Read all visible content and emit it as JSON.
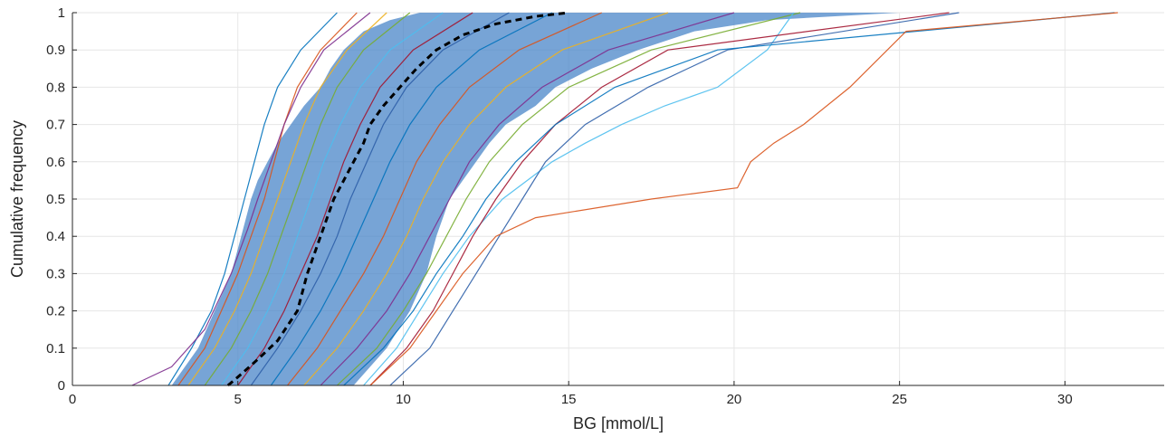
{
  "chart_data": {
    "type": "line",
    "title": "",
    "xlabel": "BG [mmol/L]",
    "ylabel": "Cumulative frequency",
    "xlim": [
      0,
      33
    ],
    "ylim": [
      0,
      1
    ],
    "xticks": [
      0,
      5,
      10,
      15,
      20,
      25,
      30
    ],
    "yticks": [
      0,
      0.1,
      0.2,
      0.3,
      0.4,
      0.5,
      0.6,
      0.7,
      0.8,
      0.9,
      1
    ],
    "grid": true,
    "legend": "none",
    "colors": {
      "band": "#4a86c8",
      "median": "#000000",
      "palette": [
        "#0072bd",
        "#d95319",
        "#edb120",
        "#7e2f8e",
        "#77ac30",
        "#4dbeee",
        "#a2142f",
        "#2e5fa8"
      ]
    },
    "band": {
      "x_lower": [
        3.0,
        3.8,
        4.3,
        4.8,
        5.1,
        5.4,
        5.6,
        5.9,
        6.2,
        6.6,
        7.0,
        7.5,
        7.8,
        8.2,
        8.8,
        9.6,
        10.5
      ],
      "x_upper": [
        8.5,
        9.5,
        10.2,
        10.7,
        11.0,
        11.4,
        11.8,
        12.2,
        12.6,
        13.1,
        14.0,
        14.6,
        15.7,
        17.1,
        18.8,
        21.0,
        25.0
      ],
      "y": [
        0,
        0.1,
        0.2,
        0.3,
        0.4,
        0.5,
        0.55,
        0.6,
        0.65,
        0.7,
        0.75,
        0.8,
        0.85,
        0.9,
        0.95,
        0.98,
        1.0
      ]
    },
    "median": {
      "x": [
        4.7,
        5.1,
        5.6,
        6.2,
        6.8,
        7.1,
        7.3,
        7.5,
        7.7,
        7.9,
        8.2,
        8.5,
        8.8,
        9.0,
        9.4,
        9.9,
        10.4,
        11.0,
        11.8,
        12.8,
        14.0,
        15.0
      ],
      "y": [
        0,
        0.03,
        0.07,
        0.12,
        0.2,
        0.3,
        0.35,
        0.4,
        0.45,
        0.5,
        0.55,
        0.6,
        0.65,
        0.7,
        0.75,
        0.8,
        0.85,
        0.9,
        0.94,
        0.97,
        0.99,
        1.0
      ]
    },
    "series": [
      {
        "x": [
          2.9,
          3.6,
          4.2,
          4.6,
          4.9,
          5.2,
          5.5,
          5.8,
          6.2,
          6.9,
          8.0
        ],
        "y": [
          0,
          0.1,
          0.2,
          0.3,
          0.4,
          0.5,
          0.6,
          0.7,
          0.8,
          0.9,
          1.0
        ]
      },
      {
        "x": [
          3.2,
          4.0,
          4.5,
          5.0,
          5.4,
          5.8,
          6.1,
          6.4,
          6.8,
          7.5,
          8.6
        ],
        "y": [
          0,
          0.1,
          0.2,
          0.3,
          0.4,
          0.5,
          0.6,
          0.7,
          0.8,
          0.9,
          1.0
        ]
      },
      {
        "x": [
          3.5,
          4.3,
          4.9,
          5.4,
          5.8,
          6.2,
          6.6,
          7.0,
          7.5,
          8.3,
          9.5
        ],
        "y": [
          0,
          0.1,
          0.2,
          0.3,
          0.4,
          0.5,
          0.6,
          0.7,
          0.8,
          0.9,
          1.0
        ]
      },
      {
        "x": [
          1.8,
          3.0,
          4.0,
          4.8,
          5.3,
          5.6,
          6.0,
          6.4,
          6.9,
          7.6,
          9.0
        ],
        "y": [
          0,
          0.05,
          0.15,
          0.3,
          0.42,
          0.5,
          0.6,
          0.7,
          0.8,
          0.9,
          1.0
        ]
      },
      {
        "x": [
          4.0,
          4.8,
          5.4,
          5.9,
          6.3,
          6.7,
          7.1,
          7.5,
          8.0,
          8.8,
          10.2
        ],
        "y": [
          0,
          0.1,
          0.2,
          0.3,
          0.4,
          0.5,
          0.6,
          0.7,
          0.8,
          0.9,
          1.0
        ]
      },
      {
        "x": [
          4.5,
          5.3,
          5.9,
          6.4,
          6.8,
          7.2,
          7.6,
          8.1,
          8.7,
          9.6,
          11.2
        ],
        "y": [
          0,
          0.1,
          0.2,
          0.3,
          0.4,
          0.5,
          0.6,
          0.7,
          0.8,
          0.9,
          1.0
        ]
      },
      {
        "x": [
          5.0,
          5.8,
          6.4,
          6.9,
          7.4,
          7.8,
          8.2,
          8.7,
          9.3,
          10.3,
          12.1
        ],
        "y": [
          0,
          0.1,
          0.2,
          0.3,
          0.4,
          0.5,
          0.6,
          0.7,
          0.8,
          0.9,
          1.0
        ]
      },
      {
        "x": [
          5.4,
          6.2,
          6.9,
          7.5,
          8.0,
          8.4,
          8.9,
          9.4,
          10.1,
          11.2,
          13.2
        ],
        "y": [
          0,
          0.1,
          0.2,
          0.3,
          0.4,
          0.5,
          0.6,
          0.7,
          0.8,
          0.9,
          1.0
        ]
      },
      {
        "x": [
          6.0,
          6.8,
          7.5,
          8.1,
          8.6,
          9.1,
          9.6,
          10.2,
          11.0,
          12.3,
          14.5
        ],
        "y": [
          0,
          0.1,
          0.2,
          0.3,
          0.4,
          0.5,
          0.6,
          0.7,
          0.8,
          0.9,
          1.0
        ]
      },
      {
        "x": [
          6.5,
          7.4,
          8.1,
          8.8,
          9.4,
          9.9,
          10.4,
          11.1,
          12.0,
          13.5,
          16.0
        ],
        "y": [
          0,
          0.1,
          0.2,
          0.3,
          0.4,
          0.5,
          0.6,
          0.7,
          0.8,
          0.9,
          1.0
        ]
      },
      {
        "x": [
          7.0,
          8.0,
          8.8,
          9.5,
          10.1,
          10.6,
          11.2,
          12.0,
          13.1,
          14.8,
          18.0
        ],
        "y": [
          0,
          0.1,
          0.2,
          0.3,
          0.4,
          0.5,
          0.6,
          0.7,
          0.8,
          0.9,
          1.0
        ]
      },
      {
        "x": [
          7.5,
          8.6,
          9.5,
          10.2,
          10.8,
          11.4,
          12.0,
          12.9,
          14.2,
          16.2,
          20.0
        ],
        "y": [
          0,
          0.1,
          0.2,
          0.3,
          0.4,
          0.5,
          0.6,
          0.7,
          0.8,
          0.9,
          1.0
        ]
      },
      {
        "x": [
          8.0,
          9.2,
          10.0,
          10.7,
          11.3,
          11.9,
          12.6,
          13.6,
          15.0,
          17.5,
          22.0
        ],
        "y": [
          0,
          0.1,
          0.2,
          0.3,
          0.4,
          0.5,
          0.6,
          0.7,
          0.8,
          0.9,
          1.0
        ]
      },
      {
        "x": [
          8.8,
          9.8,
          10.5,
          11.2,
          12.0,
          13.0,
          14.5,
          15.5,
          16.6,
          17.9,
          19.5,
          21.0,
          21.8
        ],
        "y": [
          0,
          0.1,
          0.2,
          0.3,
          0.4,
          0.5,
          0.6,
          0.65,
          0.7,
          0.75,
          0.8,
          0.9,
          1.0
        ]
      },
      {
        "x": [
          9.0,
          10.1,
          10.9,
          11.5,
          12.1,
          12.8,
          13.6,
          14.6,
          16.0,
          18.0,
          26.5
        ],
        "y": [
          0,
          0.1,
          0.2,
          0.3,
          0.4,
          0.5,
          0.6,
          0.7,
          0.8,
          0.9,
          1.0
        ]
      },
      {
        "x": [
          9.6,
          10.8,
          11.5,
          12.2,
          12.9,
          13.6,
          14.3,
          15.5,
          17.4,
          19.8,
          26.8
        ],
        "y": [
          0,
          0.1,
          0.2,
          0.3,
          0.4,
          0.5,
          0.6,
          0.7,
          0.8,
          0.9,
          1.0
        ]
      },
      {
        "x": [
          8.2,
          9.4,
          10.3,
          11.0,
          11.8,
          12.5,
          13.4,
          14.6,
          16.4,
          19.5,
          31.5
        ],
        "y": [
          0,
          0.1,
          0.2,
          0.3,
          0.4,
          0.5,
          0.6,
          0.7,
          0.8,
          0.9,
          1.0
        ]
      },
      {
        "x": [
          9.0,
          10.2,
          11.0,
          11.8,
          12.8,
          14.0,
          17.5,
          20.1,
          20.5,
          21.2,
          22.1,
          23.5,
          25.2,
          31.6
        ],
        "y": [
          0,
          0.1,
          0.2,
          0.3,
          0.4,
          0.45,
          0.5,
          0.53,
          0.6,
          0.65,
          0.7,
          0.8,
          0.95,
          1.0
        ]
      }
    ]
  }
}
